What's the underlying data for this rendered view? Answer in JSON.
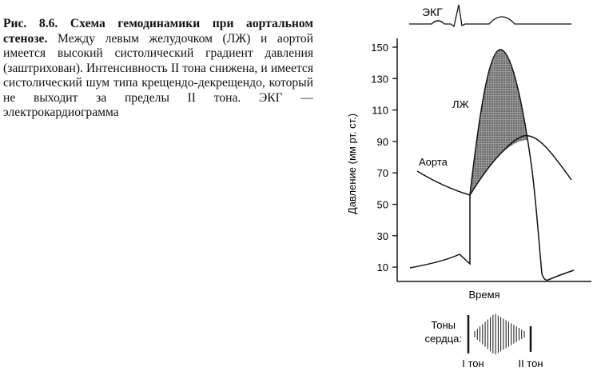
{
  "caption": {
    "label": "Рис. 8.6. Схема гемодинамики при аортальном стенозе.",
    "text": "Между левым желудочком (ЛЖ) и аортой имеется высокий систолический градиент давления (заштрихован). Интенсивность II тона снижена, и имеется систолический шум типа крещендо-декрещендо, который не выходит за пределы II тона. ЭКГ — электрокардиограмма"
  },
  "figure": {
    "ecg_label": "ЭКГ",
    "y_axis_label": "Давление (мм рт. ст.)",
    "x_axis_label": "Время",
    "y_ticks": [
      "150",
      "130",
      "110",
      "90",
      "70",
      "50",
      "30",
      "10"
    ],
    "lv_label": "ЛЖ",
    "aorta_label": "Аорта",
    "heart_sounds_label_line1": "Тоны",
    "heart_sounds_label_line2": "сердца:",
    "s1_label": "I тон",
    "s2_label": "II тон"
  },
  "colors": {
    "ink": "#111111",
    "gradient_fill": "#777777"
  }
}
